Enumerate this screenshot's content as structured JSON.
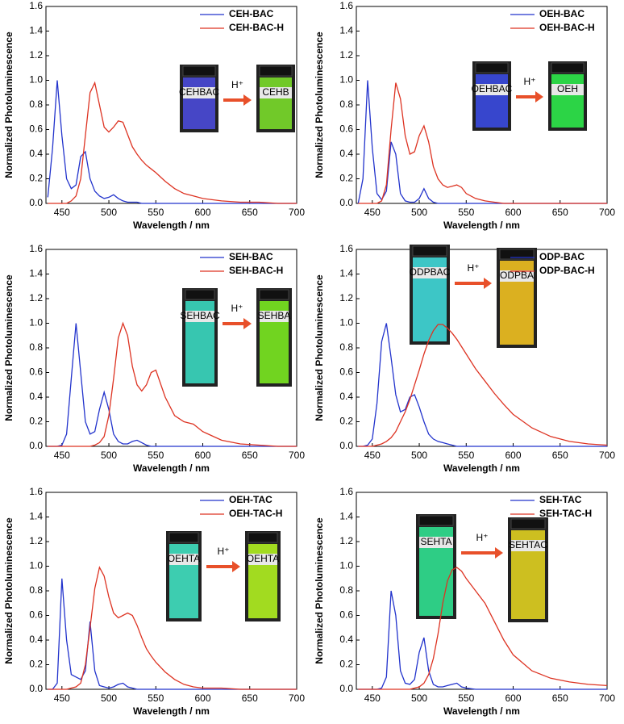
{
  "chart_data": [
    {
      "type": "line",
      "xlabel": "Wavelength / nm",
      "ylabel": "Normalized Photoluminescence",
      "annotation": "H⁺",
      "vial_labels": [
        "CEHBAC",
        "CEHB"
      ],
      "vial_colors": [
        "#4a4ad8",
        "#7adc2a"
      ],
      "x": [
        435,
        440,
        445,
        450,
        455,
        460,
        465,
        470,
        475,
        480,
        485,
        490,
        495,
        500,
        505,
        510,
        515,
        520,
        525,
        530,
        535,
        540,
        545,
        550,
        560,
        570,
        580,
        590,
        600,
        620,
        640,
        660,
        680,
        700
      ],
      "series": [
        {
          "name": "CEH-BAC",
          "color": "#2233cc",
          "values": [
            0.05,
            0.45,
            1.0,
            0.55,
            0.2,
            0.12,
            0.15,
            0.38,
            0.42,
            0.2,
            0.1,
            0.06,
            0.04,
            0.05,
            0.07,
            0.04,
            0.02,
            0.01,
            0.01,
            0.01,
            0,
            0,
            0,
            0,
            0,
            0,
            0,
            0,
            0,
            0,
            0,
            0,
            0,
            0
          ]
        },
        {
          "name": "CEH-BAC-H",
          "color": "#dd3322",
          "values": [
            0,
            0,
            0,
            0,
            0,
            0.02,
            0.06,
            0.2,
            0.55,
            0.9,
            0.98,
            0.8,
            0.62,
            0.58,
            0.62,
            0.67,
            0.66,
            0.56,
            0.46,
            0.4,
            0.35,
            0.31,
            0.28,
            0.25,
            0.18,
            0.12,
            0.08,
            0.06,
            0.04,
            0.02,
            0.01,
            0.01,
            0,
            0
          ]
        }
      ],
      "xlim": [
        433,
        700
      ],
      "xticks": [
        450,
        500,
        550,
        600,
        650,
        700
      ],
      "ylim": [
        0,
        1.6
      ],
      "yticks": [
        {
          "value": 0,
          "label": "0.0"
        },
        0.2,
        0.4,
        0.6,
        0.8,
        {
          "value": 1,
          "label": "1.0"
        },
        1.2,
        1.4,
        1.6
      ]
    },
    {
      "type": "line",
      "xlabel": "Wavelength / nm",
      "ylabel": "Normalized Photoluminescence",
      "annotation": "H⁺",
      "vial_labels": [
        "OEHBAC",
        "OEH"
      ],
      "vial_colors": [
        "#3a4ae0",
        "#2ee84a"
      ],
      "x": [
        435,
        440,
        445,
        450,
        455,
        460,
        465,
        470,
        475,
        480,
        485,
        490,
        495,
        500,
        505,
        510,
        515,
        520,
        525,
        530,
        535,
        540,
        545,
        550,
        560,
        570,
        580,
        590,
        600,
        620,
        640,
        660,
        680,
        700
      ],
      "series": [
        {
          "name": "OEH-BAC",
          "color": "#2233cc",
          "values": [
            0,
            0.2,
            1.0,
            0.45,
            0.08,
            0.03,
            0.1,
            0.5,
            0.4,
            0.08,
            0.02,
            0.01,
            0.01,
            0.04,
            0.12,
            0.04,
            0.01,
            0,
            0,
            0,
            0,
            0,
            0,
            0,
            0,
            0,
            0,
            0,
            0,
            0,
            0,
            0,
            0,
            0
          ]
        },
        {
          "name": "OEH-BAC-H",
          "color": "#dd3322",
          "values": [
            0,
            0,
            0,
            0,
            0,
            0.02,
            0.15,
            0.6,
            0.98,
            0.85,
            0.55,
            0.4,
            0.42,
            0.55,
            0.63,
            0.5,
            0.3,
            0.2,
            0.15,
            0.13,
            0.14,
            0.15,
            0.13,
            0.08,
            0.04,
            0.02,
            0.01,
            0,
            0,
            0,
            0,
            0,
            0,
            0
          ]
        }
      ],
      "xlim": [
        433,
        700
      ],
      "xticks": [
        450,
        500,
        550,
        600,
        650,
        700
      ],
      "ylim": [
        0,
        1.6
      ],
      "yticks": [
        {
          "value": 0,
          "label": "0.0"
        },
        0.2,
        0.4,
        0.6,
        0.8,
        {
          "value": 1,
          "label": "1.0"
        },
        1.2,
        1.4,
        1.6
      ]
    },
    {
      "type": "line",
      "xlabel": "Wavelength / nm",
      "ylabel": "Normalized Photoluminescence",
      "annotation": "H⁺",
      "vial_labels": [
        "SEHBAC",
        "SEHBA"
      ],
      "vial_colors": [
        "#3ad8c0",
        "#7ae820"
      ],
      "x": [
        435,
        440,
        445,
        450,
        455,
        460,
        465,
        470,
        475,
        480,
        485,
        490,
        495,
        500,
        505,
        510,
        515,
        520,
        525,
        530,
        535,
        540,
        545,
        550,
        560,
        570,
        580,
        590,
        600,
        620,
        640,
        660,
        680,
        700
      ],
      "series": [
        {
          "name": "SEH-BAC",
          "color": "#2233cc",
          "values": [
            0,
            0,
            0,
            0.01,
            0.1,
            0.55,
            1.0,
            0.6,
            0.2,
            0.1,
            0.12,
            0.3,
            0.44,
            0.3,
            0.1,
            0.04,
            0.02,
            0.02,
            0.04,
            0.05,
            0.03,
            0.01,
            0,
            0,
            0,
            0,
            0,
            0,
            0,
            0,
            0,
            0,
            0,
            0
          ]
        },
        {
          "name": "SEH-BAC-H",
          "color": "#dd3322",
          "values": [
            0,
            0,
            0,
            0,
            0,
            0,
            0,
            0,
            0,
            0,
            0.01,
            0.03,
            0.08,
            0.25,
            0.55,
            0.88,
            1.0,
            0.9,
            0.65,
            0.5,
            0.45,
            0.5,
            0.6,
            0.62,
            0.4,
            0.25,
            0.2,
            0.18,
            0.12,
            0.05,
            0.02,
            0.01,
            0,
            0
          ]
        }
      ],
      "xlim": [
        433,
        700
      ],
      "xticks": [
        450,
        500,
        550,
        600,
        650,
        700
      ],
      "ylim": [
        0,
        1.6
      ],
      "yticks": [
        {
          "value": 0,
          "label": "0.0"
        },
        0.2,
        0.4,
        0.6,
        0.8,
        {
          "value": 1,
          "label": "1.0"
        },
        1.2,
        1.4,
        1.6
      ]
    },
    {
      "type": "line",
      "xlabel": "Wavelength / nm",
      "ylabel": "Normalized Photoluminescence",
      "annotation": "H⁺",
      "vial_labels": [
        "ODPBAC",
        "ODPBA"
      ],
      "vial_colors": [
        "#40d8d8",
        "#f0c020"
      ],
      "x": [
        435,
        440,
        445,
        450,
        455,
        460,
        465,
        470,
        475,
        480,
        485,
        490,
        495,
        500,
        505,
        510,
        515,
        520,
        525,
        530,
        535,
        540,
        545,
        550,
        560,
        570,
        580,
        590,
        600,
        620,
        640,
        660,
        680,
        700
      ],
      "series": [
        {
          "name": "ODP-BAC",
          "color": "#2233cc",
          "values": [
            0,
            0,
            0.01,
            0.06,
            0.35,
            0.85,
            1.0,
            0.72,
            0.42,
            0.28,
            0.3,
            0.4,
            0.42,
            0.32,
            0.2,
            0.1,
            0.06,
            0.04,
            0.03,
            0.02,
            0.01,
            0,
            0,
            0,
            0,
            0,
            0,
            0,
            0,
            0,
            0,
            0,
            0,
            0
          ]
        },
        {
          "name": "ODP-BAC-H",
          "color": "#dd3322",
          "values": [
            0,
            0,
            0,
            0,
            0.01,
            0.02,
            0.04,
            0.07,
            0.12,
            0.2,
            0.28,
            0.38,
            0.5,
            0.62,
            0.75,
            0.86,
            0.94,
            0.99,
            0.99,
            0.96,
            0.92,
            0.87,
            0.81,
            0.75,
            0.63,
            0.53,
            0.43,
            0.34,
            0.26,
            0.15,
            0.08,
            0.04,
            0.02,
            0.01
          ]
        }
      ],
      "xlim": [
        433,
        700
      ],
      "xticks": [
        450,
        500,
        550,
        600,
        650,
        700
      ],
      "ylim": [
        0,
        1.6
      ],
      "yticks": [
        {
          "value": 0,
          "label": "0.0"
        },
        0.2,
        0.4,
        0.6,
        0.8,
        {
          "value": 1,
          "label": "1.0"
        },
        1.2,
        1.4,
        1.6
      ]
    },
    {
      "type": "line",
      "xlabel": "Wavelength / nm",
      "ylabel": "Normalized Photoluminescence",
      "annotation": "H⁺",
      "vial_labels": [
        "OEHTA",
        "OEHTA"
      ],
      "vial_colors": [
        "#40e0c0",
        "#b0f020"
      ],
      "x": [
        435,
        440,
        445,
        450,
        455,
        460,
        465,
        470,
        475,
        480,
        485,
        490,
        495,
        500,
        505,
        510,
        515,
        520,
        525,
        530,
        535,
        540,
        545,
        550,
        560,
        570,
        580,
        590,
        600,
        620,
        640,
        660,
        680,
        700
      ],
      "series": [
        {
          "name": "OEH-TAC",
          "color": "#2233cc",
          "values": [
            0,
            0,
            0.05,
            0.9,
            0.4,
            0.12,
            0.1,
            0.08,
            0.15,
            0.55,
            0.15,
            0.03,
            0.02,
            0.01,
            0.02,
            0.04,
            0.05,
            0.02,
            0.01,
            0,
            0,
            0,
            0,
            0,
            0,
            0,
            0,
            0,
            0,
            0,
            0,
            0,
            0,
            0
          ]
        },
        {
          "name": "OEH-TAC-H",
          "color": "#dd3322",
          "values": [
            0,
            0,
            0,
            0,
            0,
            0.01,
            0.02,
            0.05,
            0.2,
            0.5,
            0.82,
            0.99,
            0.92,
            0.75,
            0.62,
            0.58,
            0.6,
            0.62,
            0.6,
            0.52,
            0.42,
            0.33,
            0.27,
            0.22,
            0.14,
            0.08,
            0.04,
            0.02,
            0.01,
            0.01,
            0,
            0,
            0,
            0
          ]
        }
      ],
      "xlim": [
        433,
        700
      ],
      "xticks": [
        450,
        500,
        550,
        600,
        650,
        700
      ],
      "ylim": [
        0,
        1.6
      ],
      "yticks": [
        {
          "value": 0,
          "label": "0.0"
        },
        0.2,
        0.4,
        0.6,
        0.8,
        {
          "value": 1,
          "label": "1.0"
        },
        1.2,
        1.4,
        1.6
      ]
    },
    {
      "type": "line",
      "xlabel": "Wavelength / nm",
      "ylabel": "Normalized Photoluminescence",
      "annotation": "H⁺",
      "vial_labels": [
        "SEHTA",
        "SEHTAC"
      ],
      "vial_colors": [
        "#30e090",
        "#e0d020"
      ],
      "x": [
        435,
        440,
        445,
        450,
        455,
        460,
        465,
        470,
        475,
        480,
        485,
        490,
        495,
        500,
        505,
        510,
        515,
        520,
        525,
        530,
        535,
        540,
        545,
        550,
        560,
        570,
        580,
        590,
        600,
        620,
        640,
        660,
        680,
        700
      ],
      "series": [
        {
          "name": "SEH-TAC",
          "color": "#2233cc",
          "values": [
            0,
            0,
            0,
            0,
            0,
            0.01,
            0.1,
            0.8,
            0.6,
            0.15,
            0.05,
            0.04,
            0.08,
            0.3,
            0.42,
            0.15,
            0.04,
            0.02,
            0.02,
            0.03,
            0.04,
            0.05,
            0.02,
            0.01,
            0,
            0,
            0,
            0,
            0,
            0,
            0,
            0,
            0,
            0
          ]
        },
        {
          "name": "SEH-TAC-H",
          "color": "#dd3322",
          "values": [
            0,
            0,
            0,
            0,
            0,
            0,
            0,
            0,
            0,
            0,
            0,
            0,
            0.01,
            0.02,
            0.05,
            0.12,
            0.25,
            0.45,
            0.7,
            0.88,
            0.97,
            0.99,
            0.96,
            0.9,
            0.8,
            0.7,
            0.55,
            0.4,
            0.28,
            0.15,
            0.09,
            0.06,
            0.04,
            0.03
          ]
        }
      ],
      "xlim": [
        433,
        700
      ],
      "xticks": [
        450,
        500,
        550,
        600,
        650,
        700
      ],
      "ylim": [
        0,
        1.6
      ],
      "yticks": [
        {
          "value": 0,
          "label": "0.0"
        },
        0.2,
        0.4,
        0.6,
        0.8,
        {
          "value": 1,
          "label": "1.0"
        },
        1.2,
        1.4,
        1.6
      ]
    }
  ]
}
